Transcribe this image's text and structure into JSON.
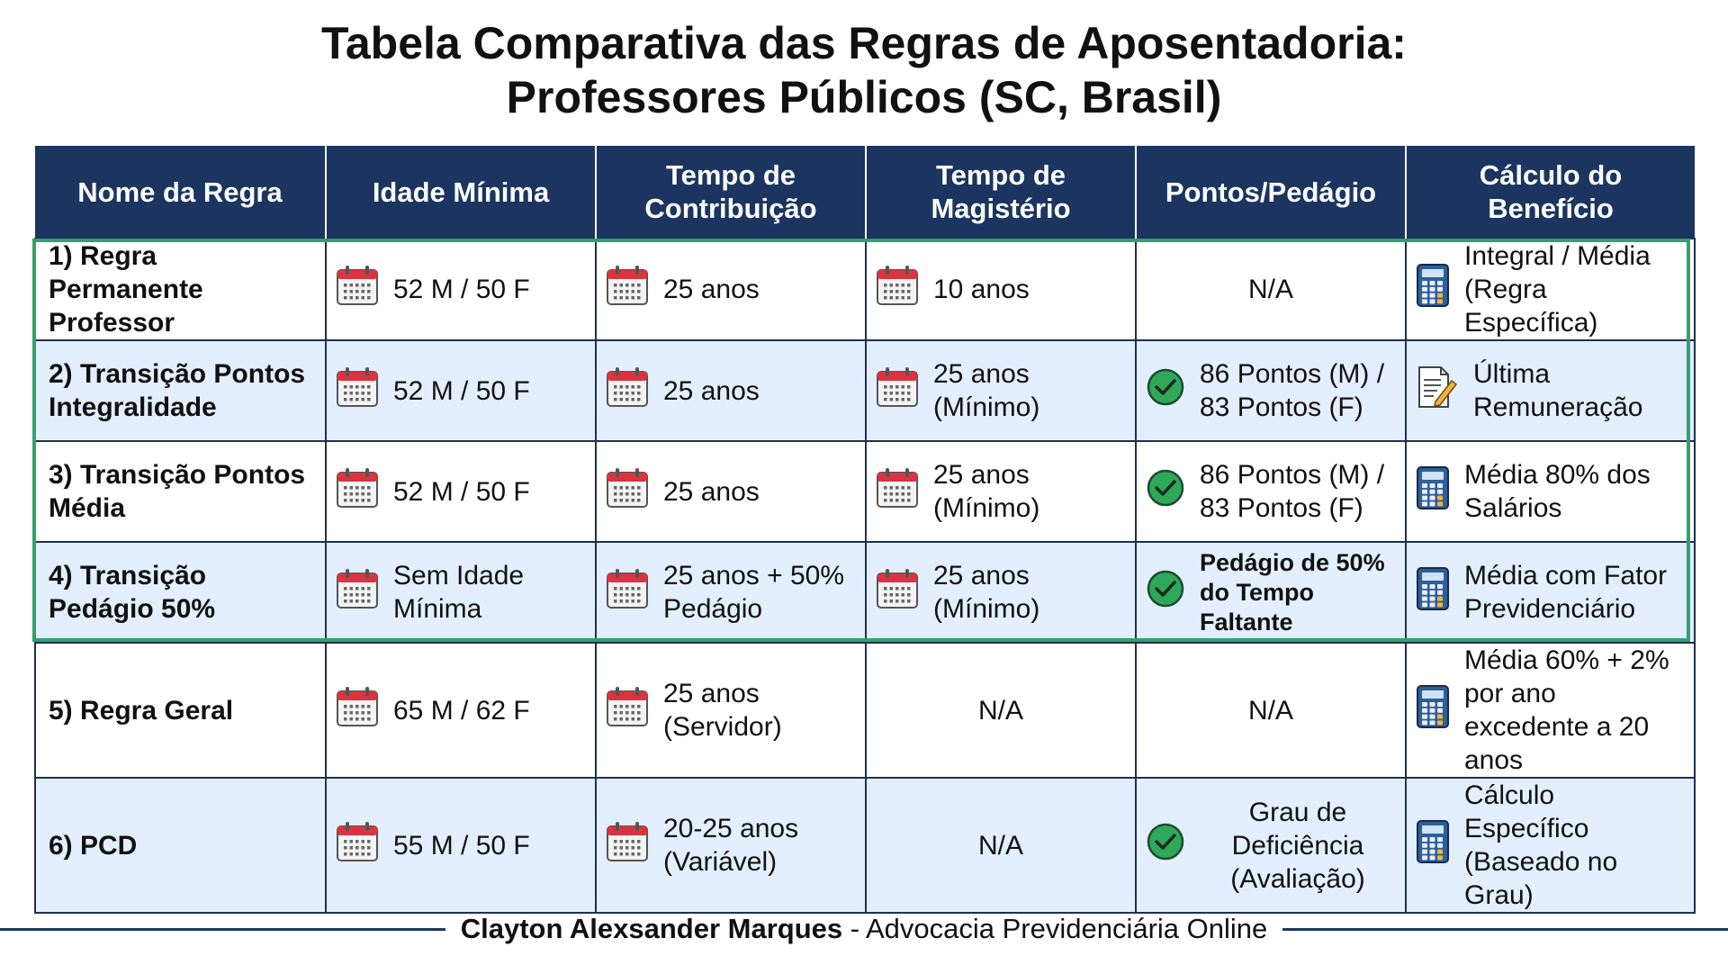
{
  "title": {
    "line1": "Tabela Comparativa das Regras de Aposentadoria:",
    "line2": "Professores Públicos (SC, Brasil)"
  },
  "colors": {
    "header_bg": "#1b3560",
    "highlight_border": "#2ea36b",
    "row_alt_bg": "#e3efff",
    "check_green": "#2fa85a",
    "calendar_red": "#d9343f"
  },
  "table": {
    "headers": [
      "Nome da Regra",
      "Idade Mínima",
      "Tempo de Contribuição",
      "Tempo de Magistério",
      "Pontos/Pedágio",
      "Cálculo do Benefício"
    ],
    "rows": [
      {
        "name": "1) Regra Permanente Professor",
        "idade": "52 M / 50 F",
        "contribuicao": "25 anos",
        "magisterio": "10 anos",
        "pontos": "N/A",
        "calculo": "Integral / Média (Regra Específica)",
        "calculo_icon": "calculator-icon"
      },
      {
        "name": "2) Transição Pontos Integralidade",
        "idade": "52 M / 50 F",
        "contribuicao": "25 anos",
        "magisterio": "25 anos (Mínimo)",
        "pontos": "86 Pontos (M) / 83 Pontos (F)",
        "calculo": "Última Remuneração",
        "calculo_icon": "document-edit-icon"
      },
      {
        "name": "3) Transição Pontos Média",
        "idade": "52 M / 50 F",
        "contribuicao": "25 anos",
        "magisterio": "25 anos (Mínimo)",
        "pontos": "86 Pontos (M) / 83 Pontos (F)",
        "calculo": "Média 80% dos Salários",
        "calculo_icon": "calculator-icon"
      },
      {
        "name": "4) Transição Pedágio 50%",
        "idade": "Sem Idade Mínima",
        "contribuicao": "25 anos + 50% Pedágio",
        "magisterio": "25 anos (Mínimo)",
        "pontos": "Pedágio de 50% do Tempo Faltante",
        "calculo": "Média com Fator Previdenciário",
        "calculo_icon": "calculator-icon"
      },
      {
        "name": "5) Regra Geral",
        "idade": "65 M / 62 F",
        "contribuicao": "25 anos (Servidor)",
        "magisterio": "N/A",
        "pontos": "N/A",
        "calculo": "Média 60% + 2% por ano excedente a 20 anos",
        "calculo_icon": "calculator-icon"
      },
      {
        "name": "6) PCD",
        "idade": "55 M / 50 F",
        "contribuicao": "20-25 anos (Variável)",
        "magisterio": "N/A",
        "pontos": "Grau de Deficiência (Avaliação)",
        "calculo": "Cálculo Específico (Baseado no Grau)",
        "calculo_icon": "calculator-icon"
      }
    ]
  },
  "footer": {
    "author": "Clayton Alexsander Marques",
    "separator": " - ",
    "tagline": "Advocacia Previdenciária Online"
  }
}
